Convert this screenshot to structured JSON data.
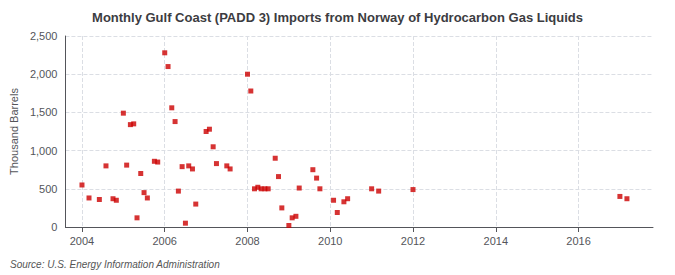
{
  "chart_data": {
    "type": "scatter",
    "title": "Monthly Gulf Coast (PADD 3) Imports from Norway of Hydrocarbon Gas Liquids",
    "ylabel": "Thousand Barrels",
    "source": "Source: U.S. Energy Information Administration",
    "color": "#cc0000",
    "marker": "square",
    "grid": true,
    "xlim": [
      2003.6,
      2017.8
    ],
    "xticks": [
      2004,
      2006,
      2008,
      2010,
      2012,
      2014,
      2016
    ],
    "ylim": [
      0,
      2500
    ],
    "yticks": [
      0,
      500,
      {
        "value": 1000,
        "label": "1,000"
      },
      {
        "value": 1500,
        "label": "1,500"
      },
      {
        "value": 2000,
        "label": "2,000"
      },
      {
        "value": 2500,
        "label": "2,500"
      }
    ],
    "x": [
      2004.0,
      2004.17,
      2004.42,
      2004.58,
      2004.75,
      2004.83,
      2005.0,
      2005.08,
      2005.17,
      2005.25,
      2005.33,
      2005.42,
      2005.5,
      2005.58,
      2005.75,
      2005.83,
      2006.0,
      2006.08,
      2006.17,
      2006.25,
      2006.33,
      2006.42,
      2006.5,
      2006.58,
      2006.67,
      2006.75,
      2007.0,
      2007.08,
      2007.17,
      2007.25,
      2007.5,
      2007.58,
      2008.0,
      2008.08,
      2008.17,
      2008.25,
      2008.33,
      2008.42,
      2008.5,
      2008.67,
      2008.75,
      2008.83,
      2009.0,
      2009.08,
      2009.17,
      2009.25,
      2009.58,
      2009.67,
      2009.75,
      2010.08,
      2010.17,
      2010.33,
      2010.42,
      2011.0,
      2011.17,
      2012.0,
      2017.0,
      2017.17
    ],
    "values": [
      550,
      380,
      360,
      800,
      370,
      350,
      1490,
      810,
      1340,
      1350,
      120,
      700,
      450,
      380,
      860,
      850,
      2280,
      2100,
      1560,
      1380,
      470,
      790,
      50,
      800,
      760,
      300,
      1250,
      1280,
      1050,
      830,
      800,
      760,
      2000,
      1780,
      500,
      520,
      500,
      500,
      500,
      900,
      660,
      250,
      20,
      120,
      140,
      510,
      750,
      640,
      500,
      350,
      190,
      330,
      370,
      500,
      470,
      490,
      400,
      370
    ]
  }
}
